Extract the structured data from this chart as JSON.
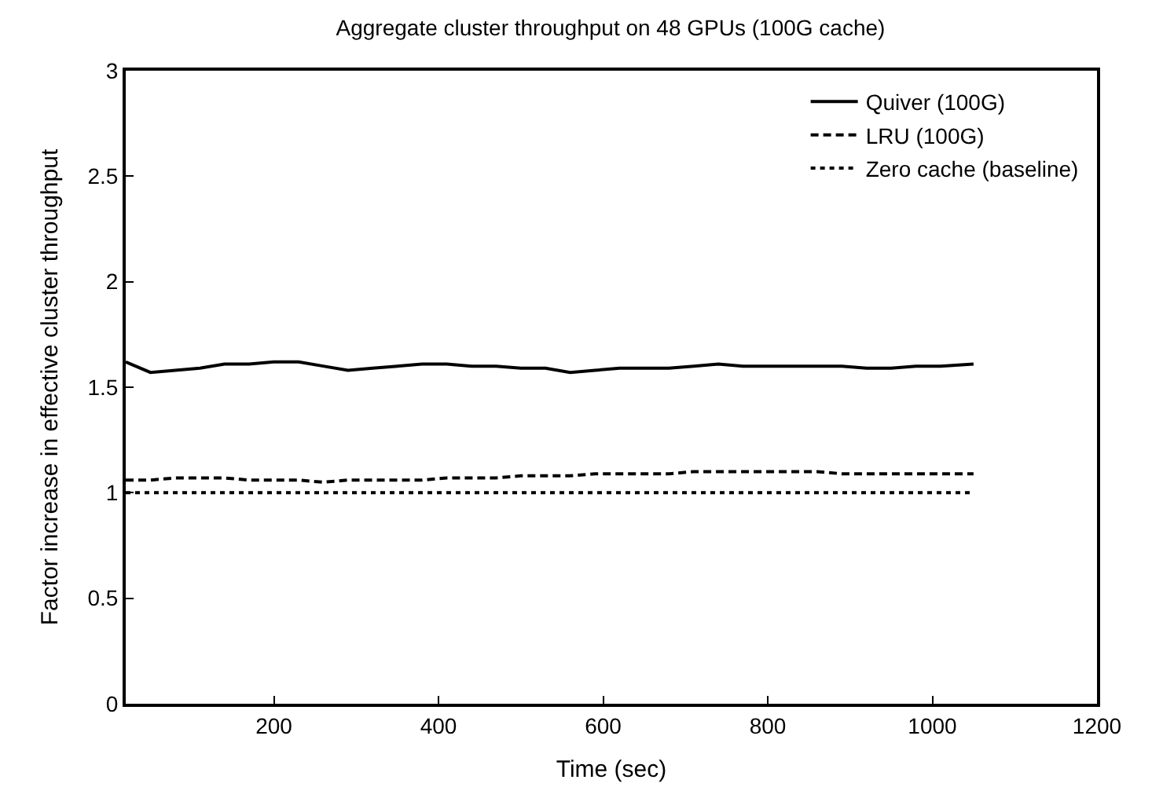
{
  "chart_data": {
    "type": "line",
    "title": "Aggregate cluster throughput on 48 GPUs (100G cache)",
    "xlabel": "Time (sec)",
    "ylabel": "Factor increase in effective cluster throughput",
    "x": [
      20,
      50,
      80,
      110,
      140,
      170,
      200,
      230,
      260,
      290,
      320,
      350,
      380,
      410,
      440,
      470,
      500,
      530,
      560,
      590,
      620,
      650,
      680,
      710,
      740,
      770,
      800,
      830,
      860,
      890,
      920,
      950,
      980,
      1010,
      1050
    ],
    "series": [
      {
        "name": "Quiver (100G)",
        "color": "#000000",
        "line_style": "solid",
        "values": [
          1.62,
          1.57,
          1.58,
          1.59,
          1.61,
          1.61,
          1.62,
          1.62,
          1.6,
          1.58,
          1.59,
          1.6,
          1.61,
          1.61,
          1.6,
          1.6,
          1.59,
          1.59,
          1.57,
          1.58,
          1.59,
          1.59,
          1.59,
          1.6,
          1.61,
          1.6,
          1.6,
          1.6,
          1.6,
          1.6,
          1.59,
          1.59,
          1.6,
          1.6,
          1.61
        ]
      },
      {
        "name": "LRU (100G)",
        "color": "#000000",
        "line_style": "dashed",
        "values": [
          1.06,
          1.06,
          1.07,
          1.07,
          1.07,
          1.06,
          1.06,
          1.06,
          1.05,
          1.06,
          1.06,
          1.06,
          1.06,
          1.07,
          1.07,
          1.07,
          1.08,
          1.08,
          1.08,
          1.09,
          1.09,
          1.09,
          1.09,
          1.1,
          1.1,
          1.1,
          1.1,
          1.1,
          1.1,
          1.09,
          1.09,
          1.09,
          1.09,
          1.09,
          1.09
        ]
      },
      {
        "name": "Zero cache (baseline)",
        "color": "#000000",
        "line_style": "dotted",
        "x": [
          20,
          1050
        ],
        "values": [
          1,
          1
        ]
      }
    ],
    "xlim": [
      20,
      1200
    ],
    "xticks": [
      200,
      400,
      600,
      800,
      1000,
      1200
    ],
    "ylim": [
      0,
      3
    ],
    "yticks": [
      0,
      0.5,
      1,
      1.5,
      2,
      2.5,
      3
    ],
    "legend": "top right",
    "marker": "none"
  }
}
